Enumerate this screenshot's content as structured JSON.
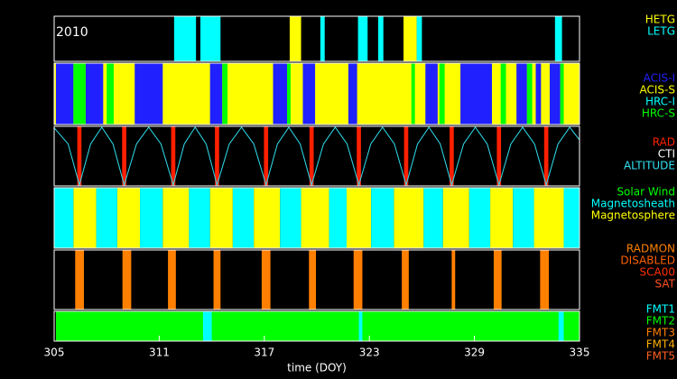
{
  "chart_data": [
    {
      "type": "timeline",
      "annotation": "2010",
      "xlim": [
        305,
        335
      ],
      "series": [
        {
          "name": "HETG",
          "color": "#ffff00",
          "intervals": [
            [
              318.45,
              319.1
            ],
            [
              324.95,
              325.7
            ]
          ]
        },
        {
          "name": "LETG",
          "color": "#00ffff",
          "intervals": [
            [
              311.85,
              313.1
            ],
            [
              313.35,
              314.5
            ],
            [
              320.2,
              320.45
            ],
            [
              322.35,
              322.9
            ],
            [
              323.5,
              323.8
            ],
            [
              325.7,
              326.0
            ],
            [
              333.6,
              334.0
            ]
          ]
        }
      ]
    },
    {
      "type": "timeline",
      "xlim": [
        305,
        335
      ],
      "series": [
        {
          "name": "ACIS-I",
          "color": "#2020ff",
          "intervals": [
            [
              305.1,
              306.1
            ],
            [
              306.8,
              307.8
            ],
            [
              309.6,
              311.2
            ],
            [
              313.9,
              314.6
            ],
            [
              317.5,
              318.3
            ],
            [
              319.2,
              319.9
            ],
            [
              321.8,
              322.3
            ],
            [
              326.2,
              326.9
            ],
            [
              328.2,
              330.0
            ],
            [
              331.4,
              332.0
            ],
            [
              332.5,
              332.8
            ],
            [
              333.3,
              333.9
            ]
          ]
        },
        {
          "name": "ACIS-S",
          "color": "#ffff00",
          "intervals": [
            [
              305,
              335
            ]
          ]
        },
        {
          "name": "HRC-I",
          "color": "#00ffff",
          "intervals": []
        },
        {
          "name": "HRC-S",
          "color": "#00ff00",
          "intervals": [
            [
              306.1,
              306.8
            ],
            [
              308.0,
              308.4
            ],
            [
              314.6,
              314.9
            ],
            [
              318.3,
              318.5
            ],
            [
              325.4,
              325.6
            ],
            [
              327.0,
              327.3
            ],
            [
              330.5,
              330.8
            ],
            [
              332.0,
              332.3
            ],
            [
              333.9,
              334.1
            ]
          ]
        }
      ]
    },
    {
      "type": "timeline",
      "xlim": [
        305,
        335
      ],
      "ylim": [
        0,
        100
      ],
      "series": [
        {
          "name": "RAD",
          "color": "#ff2000",
          "intervals": [
            [
              306.32,
              306.56
            ],
            [
              308.88,
              309.12
            ],
            [
              311.68,
              311.92
            ],
            [
              314.18,
              314.42
            ],
            [
              316.98,
              317.22
            ],
            [
              319.58,
              319.82
            ],
            [
              322.28,
              322.52
            ],
            [
              324.98,
              325.22
            ],
            [
              327.58,
              327.82
            ],
            [
              330.28,
              330.52
            ],
            [
              332.98,
              333.22
            ]
          ]
        },
        {
          "name": "CTI",
          "color": "#ffffff",
          "intervals": []
        },
        {
          "name": "ALTITUDE",
          "color": "#30e0f0",
          "x": [
            305,
            305.8,
            306.44,
            307.08,
            307.72,
            308.36,
            309.0,
            309.7,
            310.4,
            311.1,
            311.8,
            312.43,
            313.05,
            313.68,
            314.3,
            315.0,
            315.7,
            316.4,
            317.1,
            317.75,
            318.4,
            319.05,
            319.7,
            320.38,
            321.05,
            321.73,
            322.4,
            323.08,
            323.75,
            324.43,
            325.1,
            325.75,
            326.4,
            327.05,
            327.7,
            328.38,
            329.05,
            329.73,
            330.4,
            331.08,
            331.75,
            332.43,
            333.1,
            333.77,
            334.44,
            335
          ],
          "values": [
            99,
            71,
            0,
            71,
            100,
            71,
            0,
            71,
            100,
            71,
            0,
            71,
            100,
            71,
            0,
            71,
            100,
            71,
            0,
            71,
            100,
            71,
            0,
            71,
            100,
            71,
            0,
            71,
            100,
            71,
            0,
            71,
            100,
            71,
            0,
            71,
            100,
            71,
            0,
            71,
            100,
            71,
            0,
            71,
            100,
            78
          ]
        }
      ]
    },
    {
      "type": "timeline",
      "xlim": [
        305,
        335
      ],
      "series": [
        {
          "name": "Solar Wind",
          "color": "#00ff00",
          "intervals": []
        },
        {
          "name": "Magnetosheath",
          "color": "#00ffff",
          "intervals": [
            [
              305,
              306.1
            ],
            [
              307.4,
              308.6
            ],
            [
              309.9,
              311.2
            ],
            [
              312.7,
              313.9
            ],
            [
              315.2,
              316.4
            ],
            [
              317.9,
              319.1
            ],
            [
              320.7,
              321.7
            ],
            [
              323.1,
              324.4
            ],
            [
              326.1,
              327.2
            ],
            [
              328.7,
              329.9
            ],
            [
              331.2,
              332.4
            ],
            [
              334.1,
              335
            ]
          ]
        },
        {
          "name": "Magnetosphere",
          "color": "#ffff00",
          "intervals": [
            [
              306.1,
              307.4
            ],
            [
              308.6,
              309.9
            ],
            [
              311.2,
              312.7
            ],
            [
              313.9,
              315.2
            ],
            [
              316.4,
              317.9
            ],
            [
              319.1,
              320.7
            ],
            [
              321.7,
              323.1
            ],
            [
              324.4,
              326.1
            ],
            [
              327.2,
              328.7
            ],
            [
              329.9,
              331.2
            ],
            [
              332.4,
              334.1
            ]
          ]
        }
      ]
    },
    {
      "type": "timeline",
      "xlim": [
        305,
        335
      ],
      "series": [
        {
          "name": "RADMON",
          "color": "#ff8000",
          "intervals": [
            [
              306.2,
              306.7
            ],
            [
              308.9,
              309.4
            ],
            [
              311.5,
              311.95
            ],
            [
              314.1,
              314.5
            ],
            [
              316.85,
              317.35
            ],
            [
              319.55,
              319.95
            ],
            [
              322.1,
              322.6
            ],
            [
              324.85,
              325.25
            ],
            [
              327.7,
              327.9
            ],
            [
              330.1,
              330.55
            ],
            [
              332.75,
              333.25
            ]
          ]
        },
        {
          "name": "DISABLED",
          "color": "#ff6000",
          "intervals": []
        },
        {
          "name": "SCA00",
          "color": "#ff3000",
          "intervals": []
        },
        {
          "name": "SAT",
          "color": "#ff5020",
          "intervals": []
        }
      ]
    },
    {
      "type": "timeline",
      "xlim": [
        305,
        335
      ],
      "xticks": [
        305,
        311,
        317,
        323,
        329,
        335
      ],
      "x_label": "time (DOY)",
      "series": [
        {
          "name": "FMT1",
          "color": "#00ffff",
          "intervals": [
            [
              313.5,
              314.0
            ],
            [
              322.4,
              322.6
            ],
            [
              333.8,
              334.1
            ]
          ]
        },
        {
          "name": "FMT2",
          "color": "#00ff00",
          "intervals": [
            [
              305.1,
              335
            ]
          ]
        },
        {
          "name": "FMT3",
          "color": "#ff8000",
          "intervals": []
        },
        {
          "name": "FMT4",
          "color": "#ffb000",
          "intervals": []
        },
        {
          "name": "FMT5",
          "color": "#ff6020",
          "intervals": []
        }
      ]
    }
  ]
}
